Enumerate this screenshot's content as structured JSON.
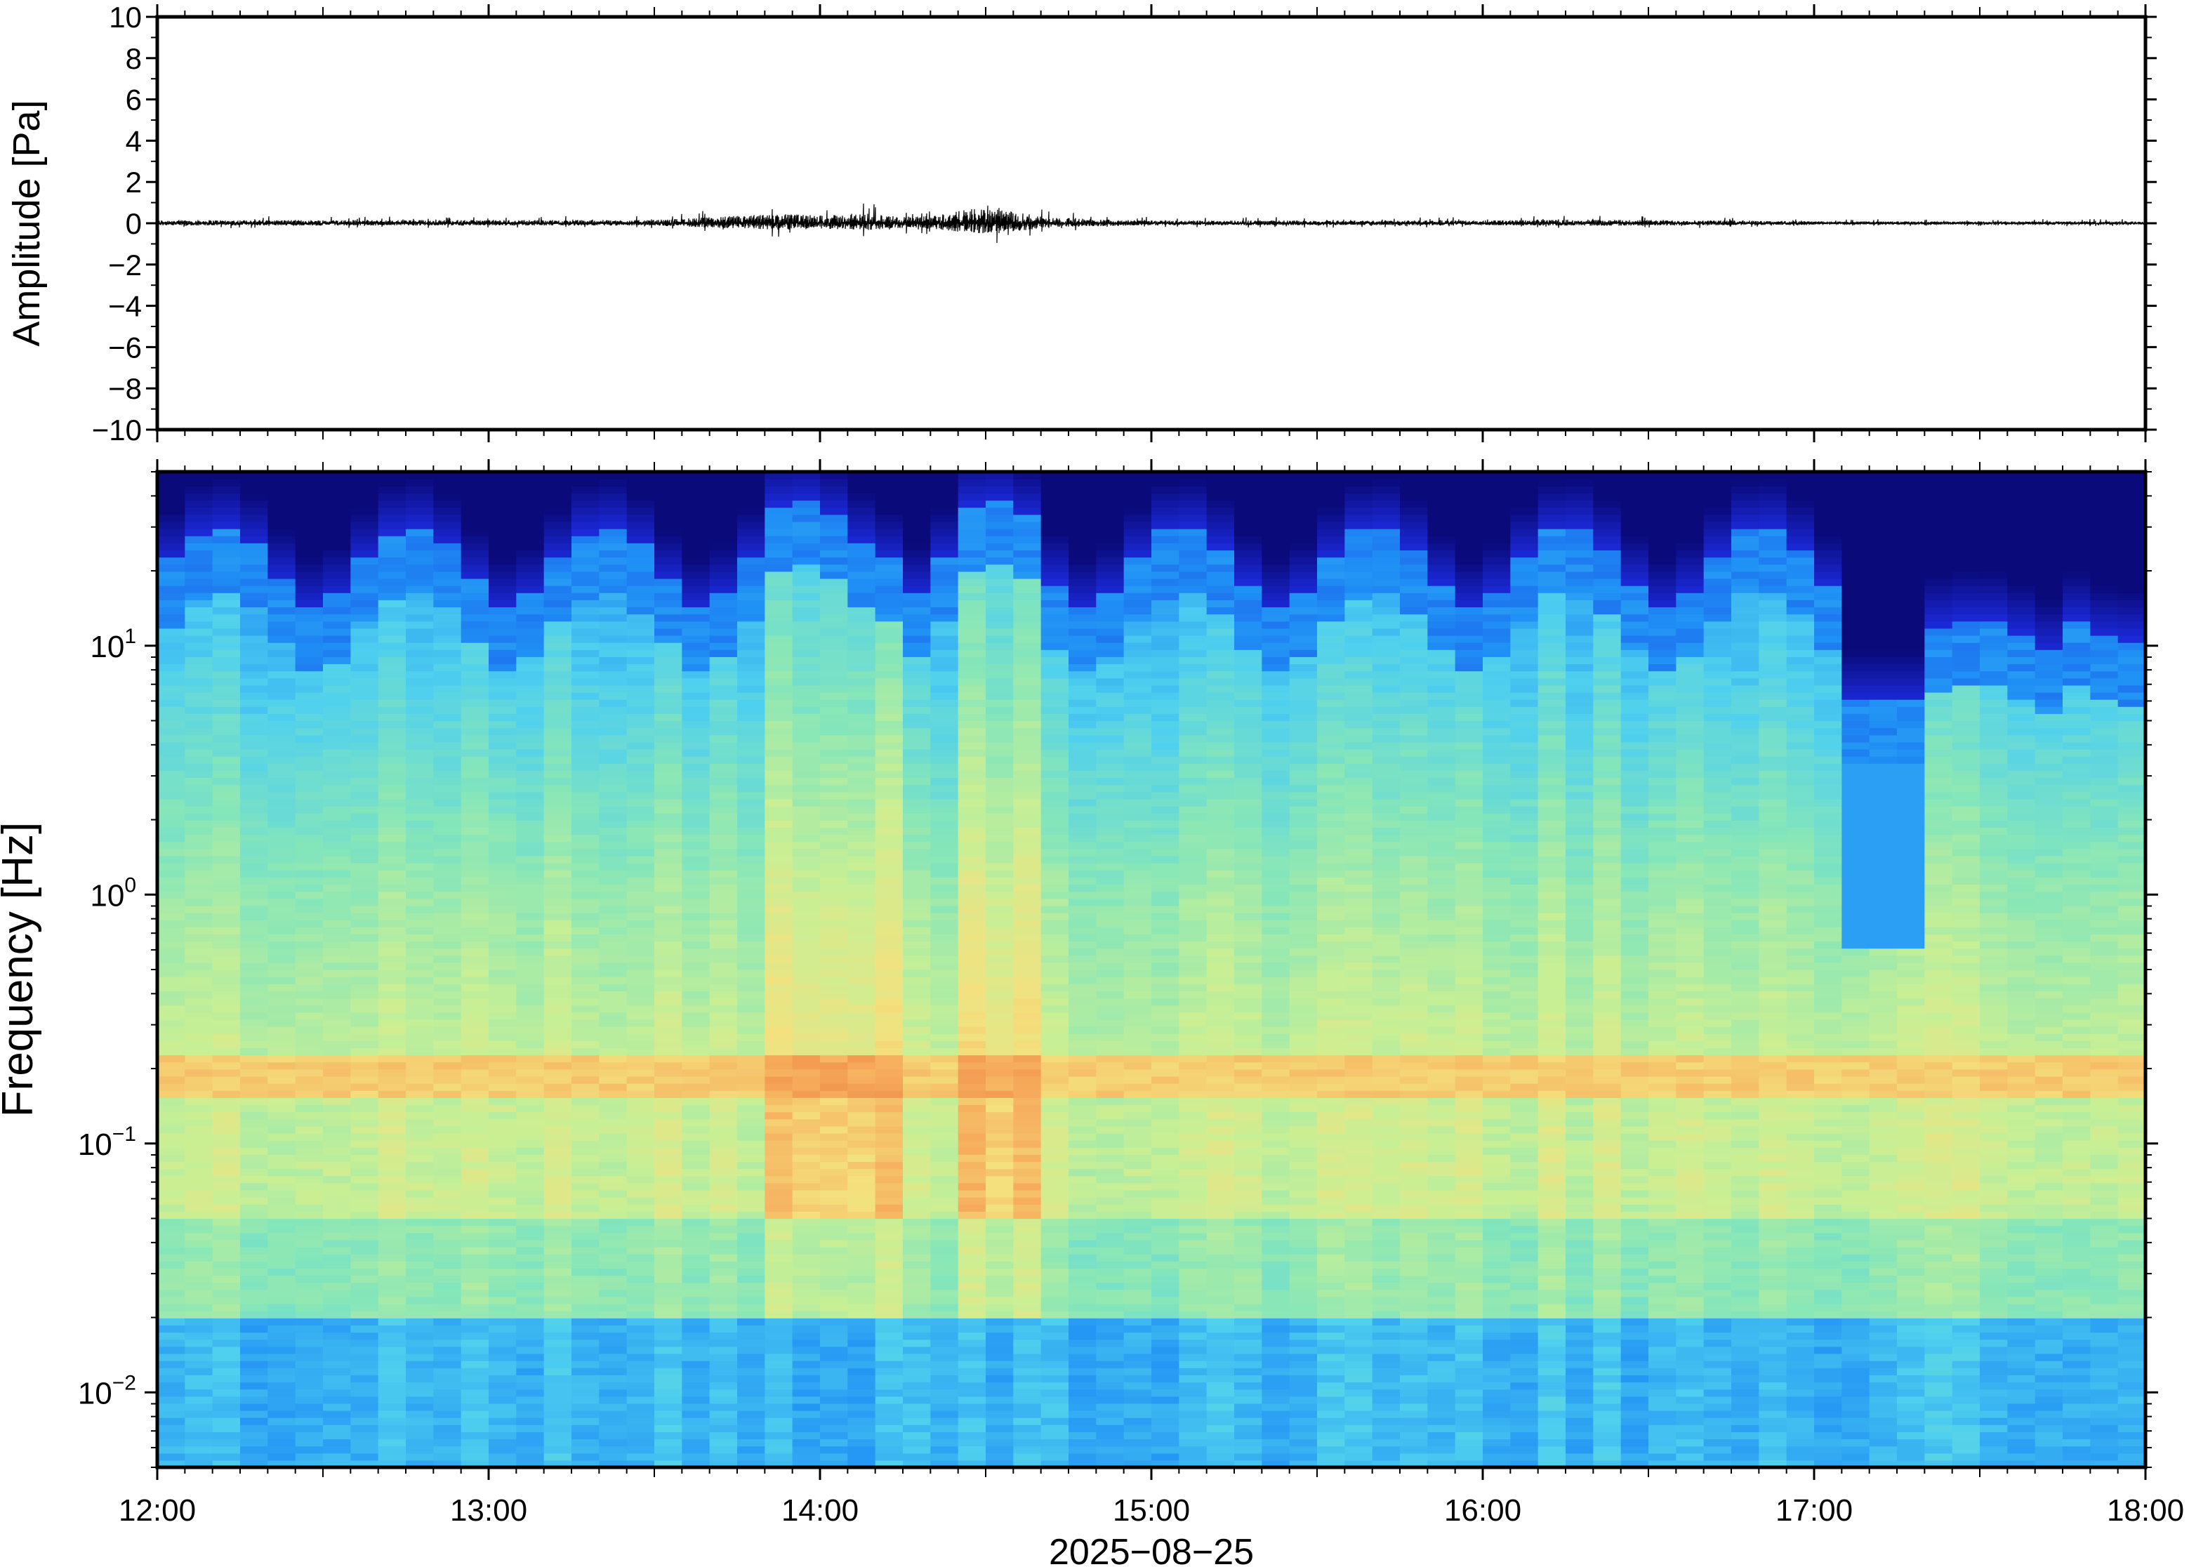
{
  "chart_data": [
    {
      "type": "line",
      "panel": "waveform",
      "ylabel": "Amplitude [Pa]",
      "ylim": [
        -10,
        10
      ],
      "yticks": [
        10,
        8,
        6,
        4,
        2,
        0,
        -2,
        -4,
        -6,
        -8,
        -10
      ],
      "ytick_labels": [
        "10",
        "8",
        "6",
        "4",
        "2",
        "0",
        "−2",
        "−4",
        "−6",
        "−8",
        "−10"
      ],
      "xlim_hours": [
        12,
        18
      ],
      "series": [
        {
          "x_hours": [
            12.0,
            13.0,
            13.5,
            13.8,
            13.9,
            14.0,
            14.1,
            14.15,
            14.2,
            14.3,
            14.4,
            14.45,
            14.5,
            14.55,
            14.6,
            14.7,
            15.0,
            16.0,
            16.3,
            16.8,
            17.0,
            18.0
          ],
          "envelope_pa": [
            0.35,
            0.35,
            0.35,
            0.9,
            1.0,
            0.85,
            0.95,
            1.1,
            0.8,
            0.7,
            1.2,
            1.5,
            1.6,
            1.4,
            1.2,
            0.6,
            0.3,
            0.3,
            0.4,
            0.3,
            0.2,
            0.2
          ]
        }
      ]
    },
    {
      "type": "heatmap",
      "panel": "spectrogram",
      "ylabel": "Frequency [Hz]",
      "yscale": "log",
      "ylim": [
        0.005,
        50
      ],
      "ytick_labels": [
        {
          "base": "10",
          "exp": "1",
          "value": 10
        },
        {
          "base": "10",
          "exp": "0",
          "value": 1
        },
        {
          "base": "10",
          "exp": "−1",
          "value": 0.1
        },
        {
          "base": "10",
          "exp": "−2",
          "value": 0.01
        }
      ],
      "xlabel": "2025−08−25",
      "xlim_hours": [
        12,
        18
      ],
      "xtick_labels": [
        "12:00",
        "13:00",
        "14:00",
        "15:00",
        "16:00",
        "17:00",
        "18:00"
      ],
      "colormap": [
        "#0a0a7a",
        "#1c2bdc",
        "#1f8ff5",
        "#4fd0ee",
        "#86e6b9",
        "#c8ef95",
        "#f4e17e",
        "#f6a95a",
        "#e8703a"
      ],
      "high_energy_windows_hours": [
        [
          13.8,
          14.25
        ],
        [
          14.45,
          14.7
        ]
      ],
      "microseism_band_hz": [
        0.15,
        0.22
      ]
    }
  ]
}
